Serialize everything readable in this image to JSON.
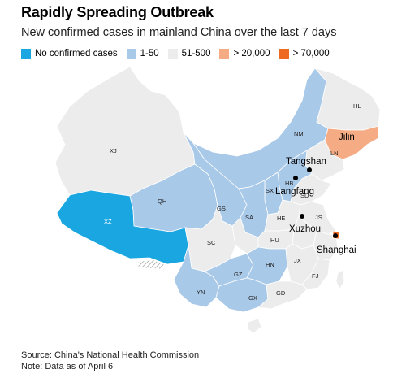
{
  "title": "Rapidly Spreading Outbreak",
  "subtitle": "New confirmed cases in mainland China over the last 7 days",
  "legend": [
    {
      "label": "No confirmed cases",
      "color": "#1aa6e0"
    },
    {
      "label": "1-50",
      "color": "#a9c9e8"
    },
    {
      "label": "51-500",
      "color": "#ececec"
    },
    {
      "label": "> 20,000",
      "color": "#f5ab84"
    },
    {
      "label": "> 70,000",
      "color": "#ef6a21"
    }
  ],
  "provinces": {
    "HL": "HL",
    "JL": "Jilin",
    "LN": "LN",
    "NM": "NM",
    "XJ": "XJ",
    "XZ": "XZ",
    "QH": "QH",
    "GS": "GS",
    "SA": "SA",
    "SC": "SC",
    "YN": "YN",
    "GZ": "GZ",
    "GX": "GX",
    "HN": "HN",
    "GD": "GD",
    "FJ": "FJ",
    "JX": "JX",
    "HU": "HU",
    "HE": "HE",
    "JS": "JS",
    "SD": "SD",
    "HB": "HB",
    "SX": "SX"
  },
  "cities": {
    "tangshan": "Tangshan",
    "langfang": "Langfang",
    "xuzhou": "Xuzhou",
    "shanghai": "Shanghai"
  },
  "source": {
    "line1": "Source: China's National Health Commission",
    "line2": "Note: Data as of April 6"
  }
}
